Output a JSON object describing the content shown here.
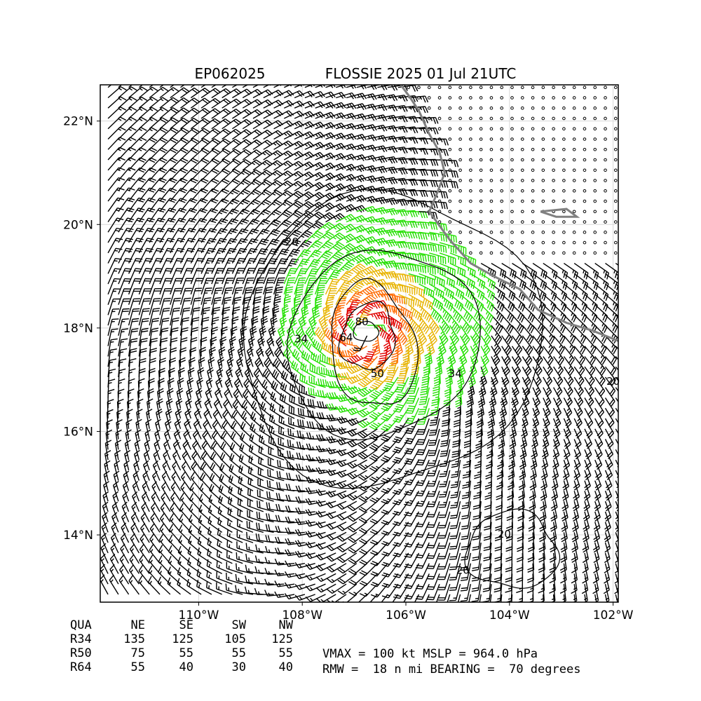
{
  "header": {
    "storm_id": "EP062025",
    "storm_title": "FLOSSIE 2025 01 Jul 21UTC"
  },
  "chart_data": {
    "type": "wind-barb-map",
    "x_axis": {
      "min": -111.9,
      "max": -101.9,
      "ticks": [
        -110,
        -108,
        -106,
        -104,
        -102
      ],
      "tick_labels": [
        "110°W",
        "108°W",
        "106°W",
        "104°W",
        "102°W"
      ]
    },
    "y_axis": {
      "min": 12.7,
      "max": 22.7,
      "ticks": [
        14,
        16,
        18,
        20,
        22
      ],
      "tick_labels": [
        "14°N",
        "16°N",
        "18°N",
        "20°N",
        "22°N"
      ]
    },
    "grid": true,
    "storm_center": {
      "lon": -106.8,
      "lat": 17.9
    },
    "contour_labels": [
      "20",
      "34",
      "50",
      "64",
      "80",
      "34",
      "20",
      "20",
      "20"
    ],
    "barb_colors": {
      "below_34": "#000000",
      "34_to_50": "#22e000",
      "50_to_64": "#e8b400",
      "64_to_80": "#ff6a00",
      "above_80": "#e00000"
    },
    "coastline_color": "#808080"
  },
  "table": {
    "headers": [
      "QUA",
      "NE",
      "SE",
      "SW",
      "NW"
    ],
    "rows": [
      {
        "label": "R34",
        "values": [
          "135",
          "125",
          "105",
          "125"
        ]
      },
      {
        "label": "R50",
        "values": [
          "75",
          "55",
          "55",
          "55"
        ]
      },
      {
        "label": "R64",
        "values": [
          "55",
          "40",
          "30",
          "40"
        ]
      }
    ]
  },
  "stats": {
    "line1": "VMAX = 100 kt MSLP = 964.0 hPa",
    "line2": "RMW =  18 n mi BEARING =  70 degrees"
  }
}
